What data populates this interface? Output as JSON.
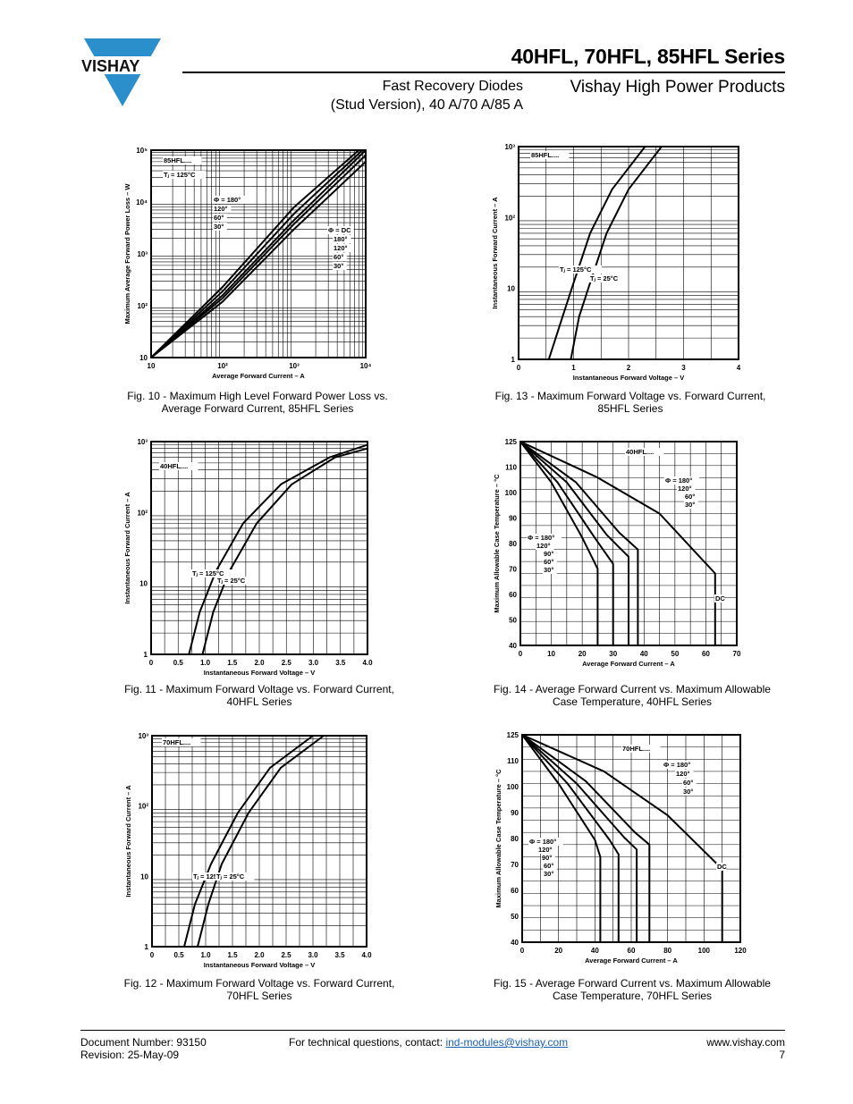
{
  "header": {
    "brand": "VISHAY",
    "series_title": "40HFL, 70HFL, 85HFL Series",
    "subtitle_line1": "Fast Recovery Diodes",
    "subtitle_line2": "(Stud Version), 40 A/70 A/85 A",
    "brand_line": "Vishay High Power Products"
  },
  "figures": [
    {
      "caption_line1": "Fig. 10 - Maximum High Level Forward Power Loss vs.",
      "caption_line2": "Average Forward Current, 85HFL Series",
      "chart_data": {
        "type": "line",
        "xlabel": "Average Forward Current – A",
        "ylabel": "Maximum Average Forward Power Loss – W",
        "x_scale": "log",
        "y_scale": "log",
        "xlim": [
          10,
          10000
        ],
        "ylim": [
          10,
          100000
        ],
        "x_ticks": [
          "10",
          "10²",
          "10³",
          "10⁴"
        ],
        "y_ticks": [
          "10",
          "10²",
          "10³",
          "10⁴",
          "10⁵"
        ],
        "annotations": [
          "85HFL....",
          "Tⱼ = 125°C",
          "Φ = 180°",
          "120°",
          "60°",
          "30°",
          "Φ = DC",
          "180°",
          "120°",
          "60°",
          "30°"
        ],
        "series": [
          {
            "name": "30°",
            "x": [
              10,
              100,
              1000,
              8000
            ],
            "y": [
              10,
              230,
              8000,
              100000
            ]
          },
          {
            "name": "60°",
            "x": [
              10,
              100,
              1000,
              9000
            ],
            "y": [
              10,
              190,
              6000,
              100000
            ]
          },
          {
            "name": "120°",
            "x": [
              10,
              100,
              1000,
              10000
            ],
            "y": [
              10,
              160,
              4500,
              100000
            ]
          },
          {
            "name": "180°",
            "x": [
              10,
              100,
              1000,
              10000
            ],
            "y": [
              10,
              140,
              3800,
              80000
            ]
          },
          {
            "name": "DC",
            "x": [
              10,
              100,
              1000,
              10000
            ],
            "y": [
              10,
              120,
              3000,
              60000
            ]
          }
        ]
      }
    },
    {
      "caption_line1": "Fig. 13 - Maximum Forward Voltage vs. Forward Current,",
      "caption_line2": "85HFL Series",
      "chart_data": {
        "type": "line",
        "xlabel": "Instantaneous Forward Voltage – V",
        "ylabel": "Instantaneous Forward Current – A",
        "y_scale": "log",
        "xlim": [
          0,
          4
        ],
        "ylim": [
          1,
          1000
        ],
        "x_ticks": [
          "0",
          "1",
          "2",
          "3",
          "4"
        ],
        "y_ticks": [
          "1",
          "10",
          "10²",
          "10³"
        ],
        "annotations": [
          "85HFL....",
          "Tⱼ = 125°C",
          "Tⱼ = 25°C"
        ],
        "series": [
          {
            "name": "Tⱼ = 125°C",
            "x": [
              0.55,
              0.8,
              1.0,
              1.3,
              1.7,
              2.3
            ],
            "y": [
              1,
              4,
              12,
              60,
              250,
              1000
            ]
          },
          {
            "name": "Tⱼ = 25°C",
            "x": [
              0.95,
              1.1,
              1.3,
              1.6,
              2.0,
              2.6
            ],
            "y": [
              1,
              4,
              12,
              60,
              250,
              1000
            ]
          }
        ]
      }
    },
    {
      "caption_line1": "Fig. 11 - Maximum Forward Voltage vs. Forward Current,",
      "caption_line2": "40HFL Series",
      "chart_data": {
        "type": "line",
        "xlabel": "Instantaneous Forward Voltage – V",
        "ylabel": "Instantaneous Forward Current – A",
        "y_scale": "log",
        "xlim": [
          0,
          4
        ],
        "ylim": [
          1,
          1000
        ],
        "x_ticks": [
          "0",
          "0.5",
          "1.0",
          "1.5",
          "2.0",
          "2.5",
          "3.0",
          "3.5",
          "4.0"
        ],
        "y_ticks": [
          "1",
          "10",
          "10²",
          "10³"
        ],
        "annotations": [
          "40HFL....",
          "Tⱼ = 125°C",
          "Tⱼ = 25°C"
        ],
        "series": [
          {
            "name": "Tⱼ = 125°C",
            "x": [
              0.7,
              0.9,
              1.2,
              1.7,
              2.4,
              3.3,
              4.0
            ],
            "y": [
              1,
              4,
              15,
              70,
              250,
              600,
              900
            ]
          },
          {
            "name": "Tⱼ = 25°C",
            "x": [
              0.95,
              1.15,
              1.45,
              1.95,
              2.6,
              3.4,
              4.0
            ],
            "y": [
              1,
              4,
              15,
              70,
              250,
              600,
              800
            ]
          }
        ]
      }
    },
    {
      "caption_line1": "Fig. 14 - Average Forward Current vs. Maximum Allowable",
      "caption_line2": "Case Temperature, 40HFL Series",
      "chart_data": {
        "type": "line",
        "xlabel": "Average Forward Current – A",
        "ylabel": "Maximum Allowable Case Temperature – °C",
        "xlim": [
          0,
          70
        ],
        "ylim": [
          40,
          125
        ],
        "x_ticks": [
          "0",
          "10",
          "20",
          "30",
          "40",
          "50",
          "60",
          "70"
        ],
        "y_ticks": [
          "40",
          "50",
          "60",
          "70",
          "80",
          "90",
          "100",
          "110",
          "125"
        ],
        "annotations": [
          "40HFL....",
          "Φ = 180°",
          "120°",
          "60°",
          "30°",
          "Φ = 180°",
          "120°",
          "90°",
          "60°",
          "30°",
          "DC"
        ],
        "series": [
          {
            "name": "30°",
            "x": [
              0,
              10,
              20,
              25,
              25
            ],
            "y": [
              125,
              108,
              85,
              72,
              40
            ]
          },
          {
            "name": "60°",
            "x": [
              0,
              12,
              24,
              30,
              30
            ],
            "y": [
              125,
              108,
              85,
              74,
              40
            ]
          },
          {
            "name": "120°",
            "x": [
              0,
              15,
              28,
              35,
              35
            ],
            "y": [
              125,
              108,
              86,
              77,
              40
            ]
          },
          {
            "name": "180°",
            "x": [
              0,
              18,
              32,
              38,
              38
            ],
            "y": [
              125,
              108,
              87,
              80,
              40
            ]
          },
          {
            "name": "DC",
            "x": [
              0,
              25,
              45,
              63,
              63
            ],
            "y": [
              125,
              110,
              95,
              70,
              40
            ]
          }
        ]
      }
    },
    {
      "caption_line1": "Fig. 12 - Maximum Forward Voltage vs. Forward Current,",
      "caption_line2": "70HFL Series",
      "chart_data": {
        "type": "line",
        "xlabel": "Instantaneous Forward Voltage – V",
        "ylabel": "Instantaneous Forward Current – A",
        "y_scale": "log",
        "xlim": [
          0,
          4
        ],
        "ylim": [
          1,
          1000
        ],
        "x_ticks": [
          "0",
          "0.5",
          "1.0",
          "1.5",
          "2.0",
          "2.5",
          "3.0",
          "3.5",
          "4.0"
        ],
        "y_ticks": [
          "1",
          "10",
          "10²",
          "10³"
        ],
        "annotations": [
          "70HFL....",
          "Tⱼ = 125°C",
          "Tⱼ = 25°C"
        ],
        "series": [
          {
            "name": "Tⱼ = 125°C",
            "x": [
              0.6,
              0.8,
              1.1,
              1.6,
              2.2,
              3.0
            ],
            "y": [
              1,
              4,
              15,
              80,
              350,
              1000
            ]
          },
          {
            "name": "Tⱼ = 25°C",
            "x": [
              0.85,
              1.05,
              1.3,
              1.8,
              2.4,
              3.2
            ],
            "y": [
              1,
              4,
              15,
              80,
              350,
              1000
            ]
          }
        ]
      }
    },
    {
      "caption_line1": "Fig. 15 - Average Forward Current vs. Maximum Allowable",
      "caption_line2": "Case Temperature, 70HFL Series",
      "chart_data": {
        "type": "line",
        "xlabel": "Average Forward Current – A",
        "ylabel": "Maximum Allowable Case Temperature – °C",
        "xlim": [
          0,
          120
        ],
        "ylim": [
          40,
          125
        ],
        "x_ticks": [
          "0",
          "20",
          "40",
          "60",
          "80",
          "100",
          "120"
        ],
        "y_ticks": [
          "40",
          "50",
          "60",
          "70",
          "80",
          "90",
          "100",
          "110",
          "125"
        ],
        "annotations": [
          "70HFL....",
          "Φ = 180°",
          "120°",
          "60°",
          "30°",
          "Φ = 180°",
          "120°",
          "90°",
          "60°",
          "30°",
          "DC"
        ],
        "series": [
          {
            "name": "30°",
            "x": [
              0,
              20,
              40,
              43,
              43
            ],
            "y": [
              125,
              105,
              82,
              75,
              40
            ]
          },
          {
            "name": "60°",
            "x": [
              0,
              25,
              48,
              53,
              53
            ],
            "y": [
              125,
              105,
              82,
              76,
              40
            ]
          },
          {
            "name": "120°",
            "x": [
              0,
              30,
              56,
              63,
              63
            ],
            "y": [
              125,
              105,
              83,
              78,
              40
            ]
          },
          {
            "name": "180°",
            "x": [
              0,
              35,
              62,
              70,
              70
            ],
            "y": [
              125,
              106,
              85,
              80,
              40
            ]
          },
          {
            "name": "DC",
            "x": [
              0,
              45,
              80,
              110,
              110
            ],
            "y": [
              125,
              110,
              92,
              70,
              40
            ]
          }
        ]
      }
    }
  ],
  "footer": {
    "doc_number": "Document Number: 93150",
    "revision": "Revision: 25-May-09",
    "contact_text": "For technical questions, contact:",
    "contact_email": "ind-modules@vishay.com",
    "website": "www.vishay.com",
    "page_number": "7"
  }
}
